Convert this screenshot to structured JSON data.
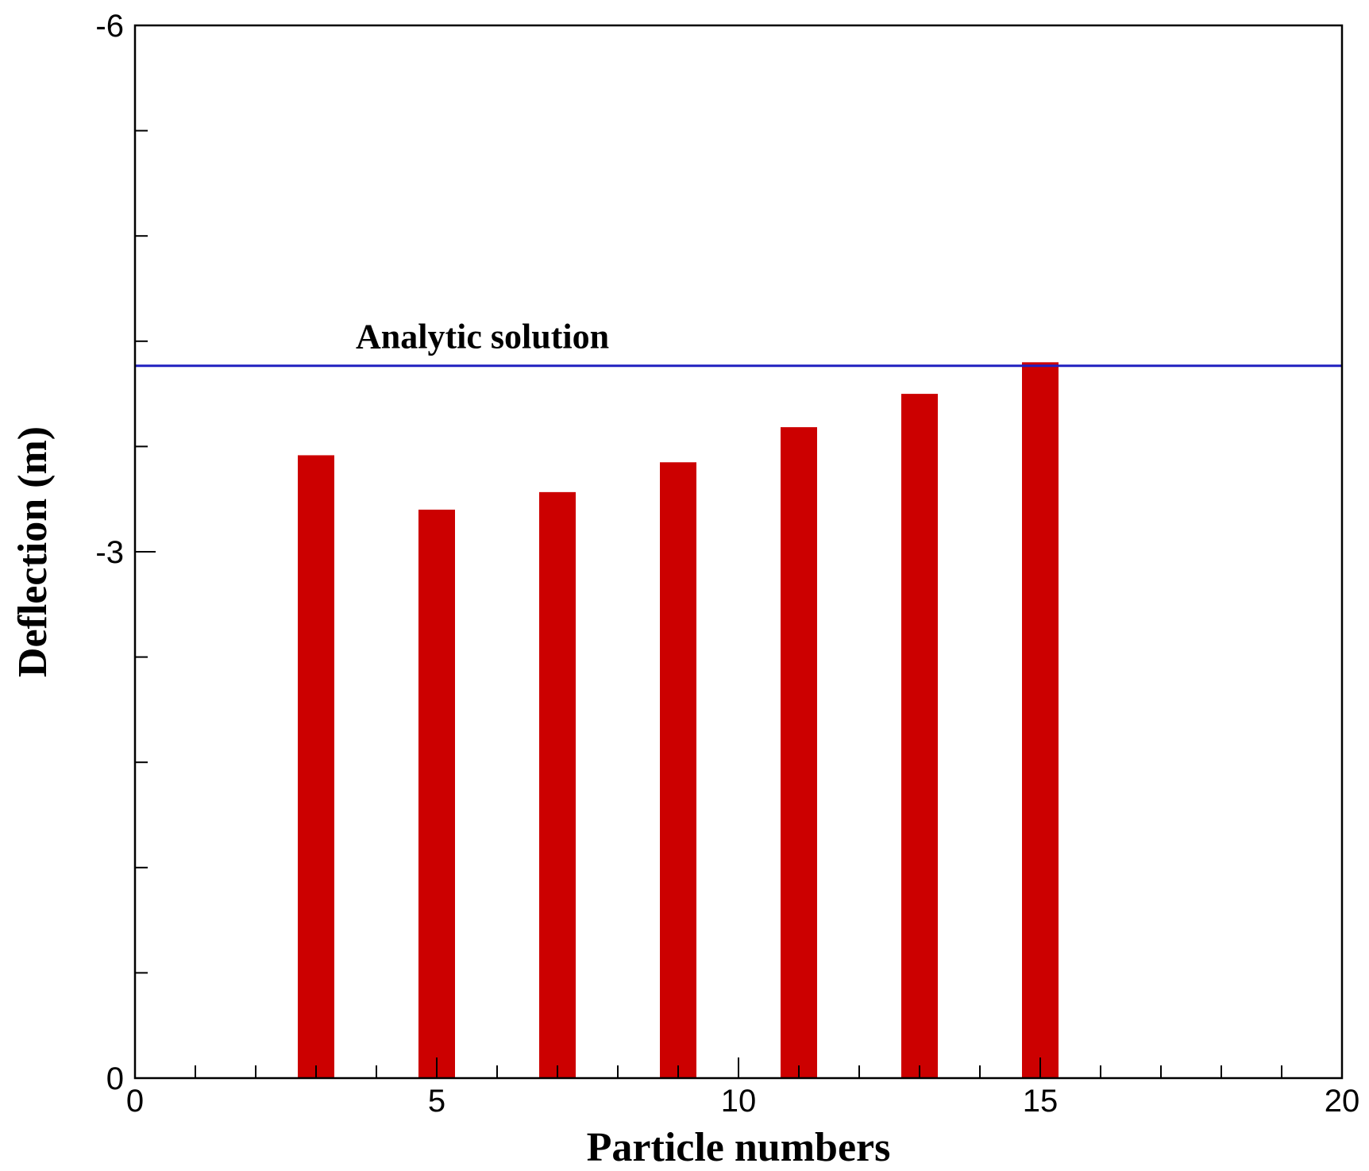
{
  "chart_data": {
    "type": "bar",
    "xlabel": "Particle numbers",
    "ylabel": "Deflection (m)",
    "x": [
      3,
      5,
      7,
      9,
      11,
      13,
      15
    ],
    "values": [
      -3.55,
      -3.24,
      -3.34,
      -3.51,
      -3.71,
      -3.9,
      -4.08
    ],
    "xlim": [
      0,
      20
    ],
    "ylim": [
      0,
      -6
    ],
    "y_axis_inverted": true,
    "x_ticks": [
      "0",
      "5",
      "10",
      "15",
      "20"
    ],
    "y_ticks": [
      "0",
      "-3",
      "-6"
    ],
    "reference_lines": [
      {
        "label": "Analytic solution",
        "y": -4.06,
        "color": "#2020c0"
      }
    ],
    "bar_color": "#cc0000",
    "grid": false,
    "legend": "none"
  }
}
